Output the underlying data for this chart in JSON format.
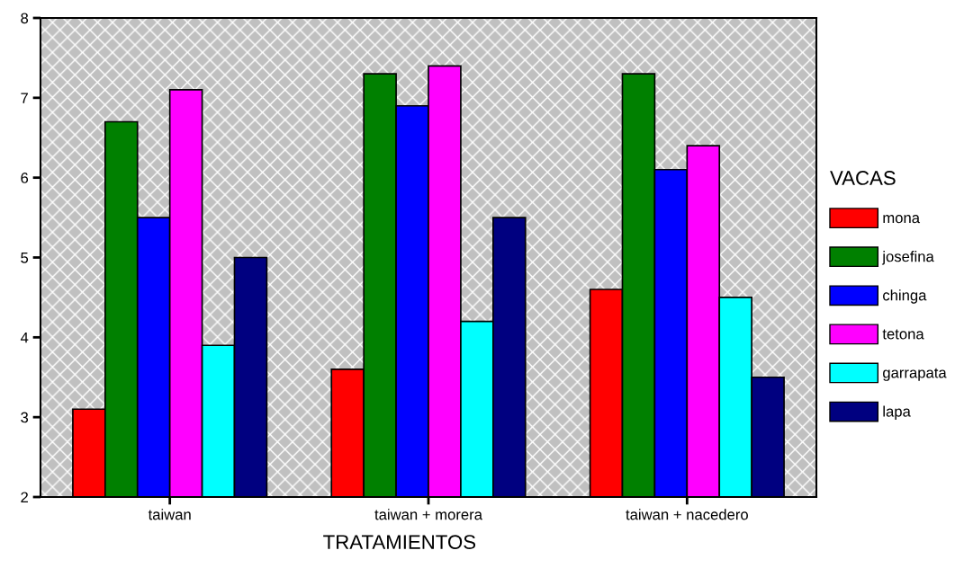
{
  "chart_data": {
    "type": "bar",
    "xlabel": "TRATAMIENTOS",
    "legend_title": "VACAS",
    "legend": "right",
    "categories": [
      "taiwan",
      "taiwan + morera",
      "taiwan + nacedero"
    ],
    "series": [
      {
        "name": "mona",
        "color": "#ff0000",
        "values": [
          3.1,
          3.6,
          4.6
        ]
      },
      {
        "name": "josefina",
        "color": "#008000",
        "values": [
          6.7,
          7.3,
          7.3
        ]
      },
      {
        "name": "chinga",
        "color": "#0000ff",
        "values": [
          5.5,
          6.9,
          6.1
        ]
      },
      {
        "name": "tetona",
        "color": "#ff00ff",
        "values": [
          7.1,
          7.4,
          6.4
        ]
      },
      {
        "name": "garrapata",
        "color": "#00ffff",
        "values": [
          3.9,
          4.2,
          4.5
        ]
      },
      {
        "name": "lapa",
        "color": "#000080",
        "values": [
          5.0,
          5.5,
          3.5
        ]
      }
    ],
    "ylim": [
      2,
      8
    ],
    "yticks": [
      2,
      3,
      4,
      5,
      6,
      7,
      8
    ],
    "grid": false
  }
}
